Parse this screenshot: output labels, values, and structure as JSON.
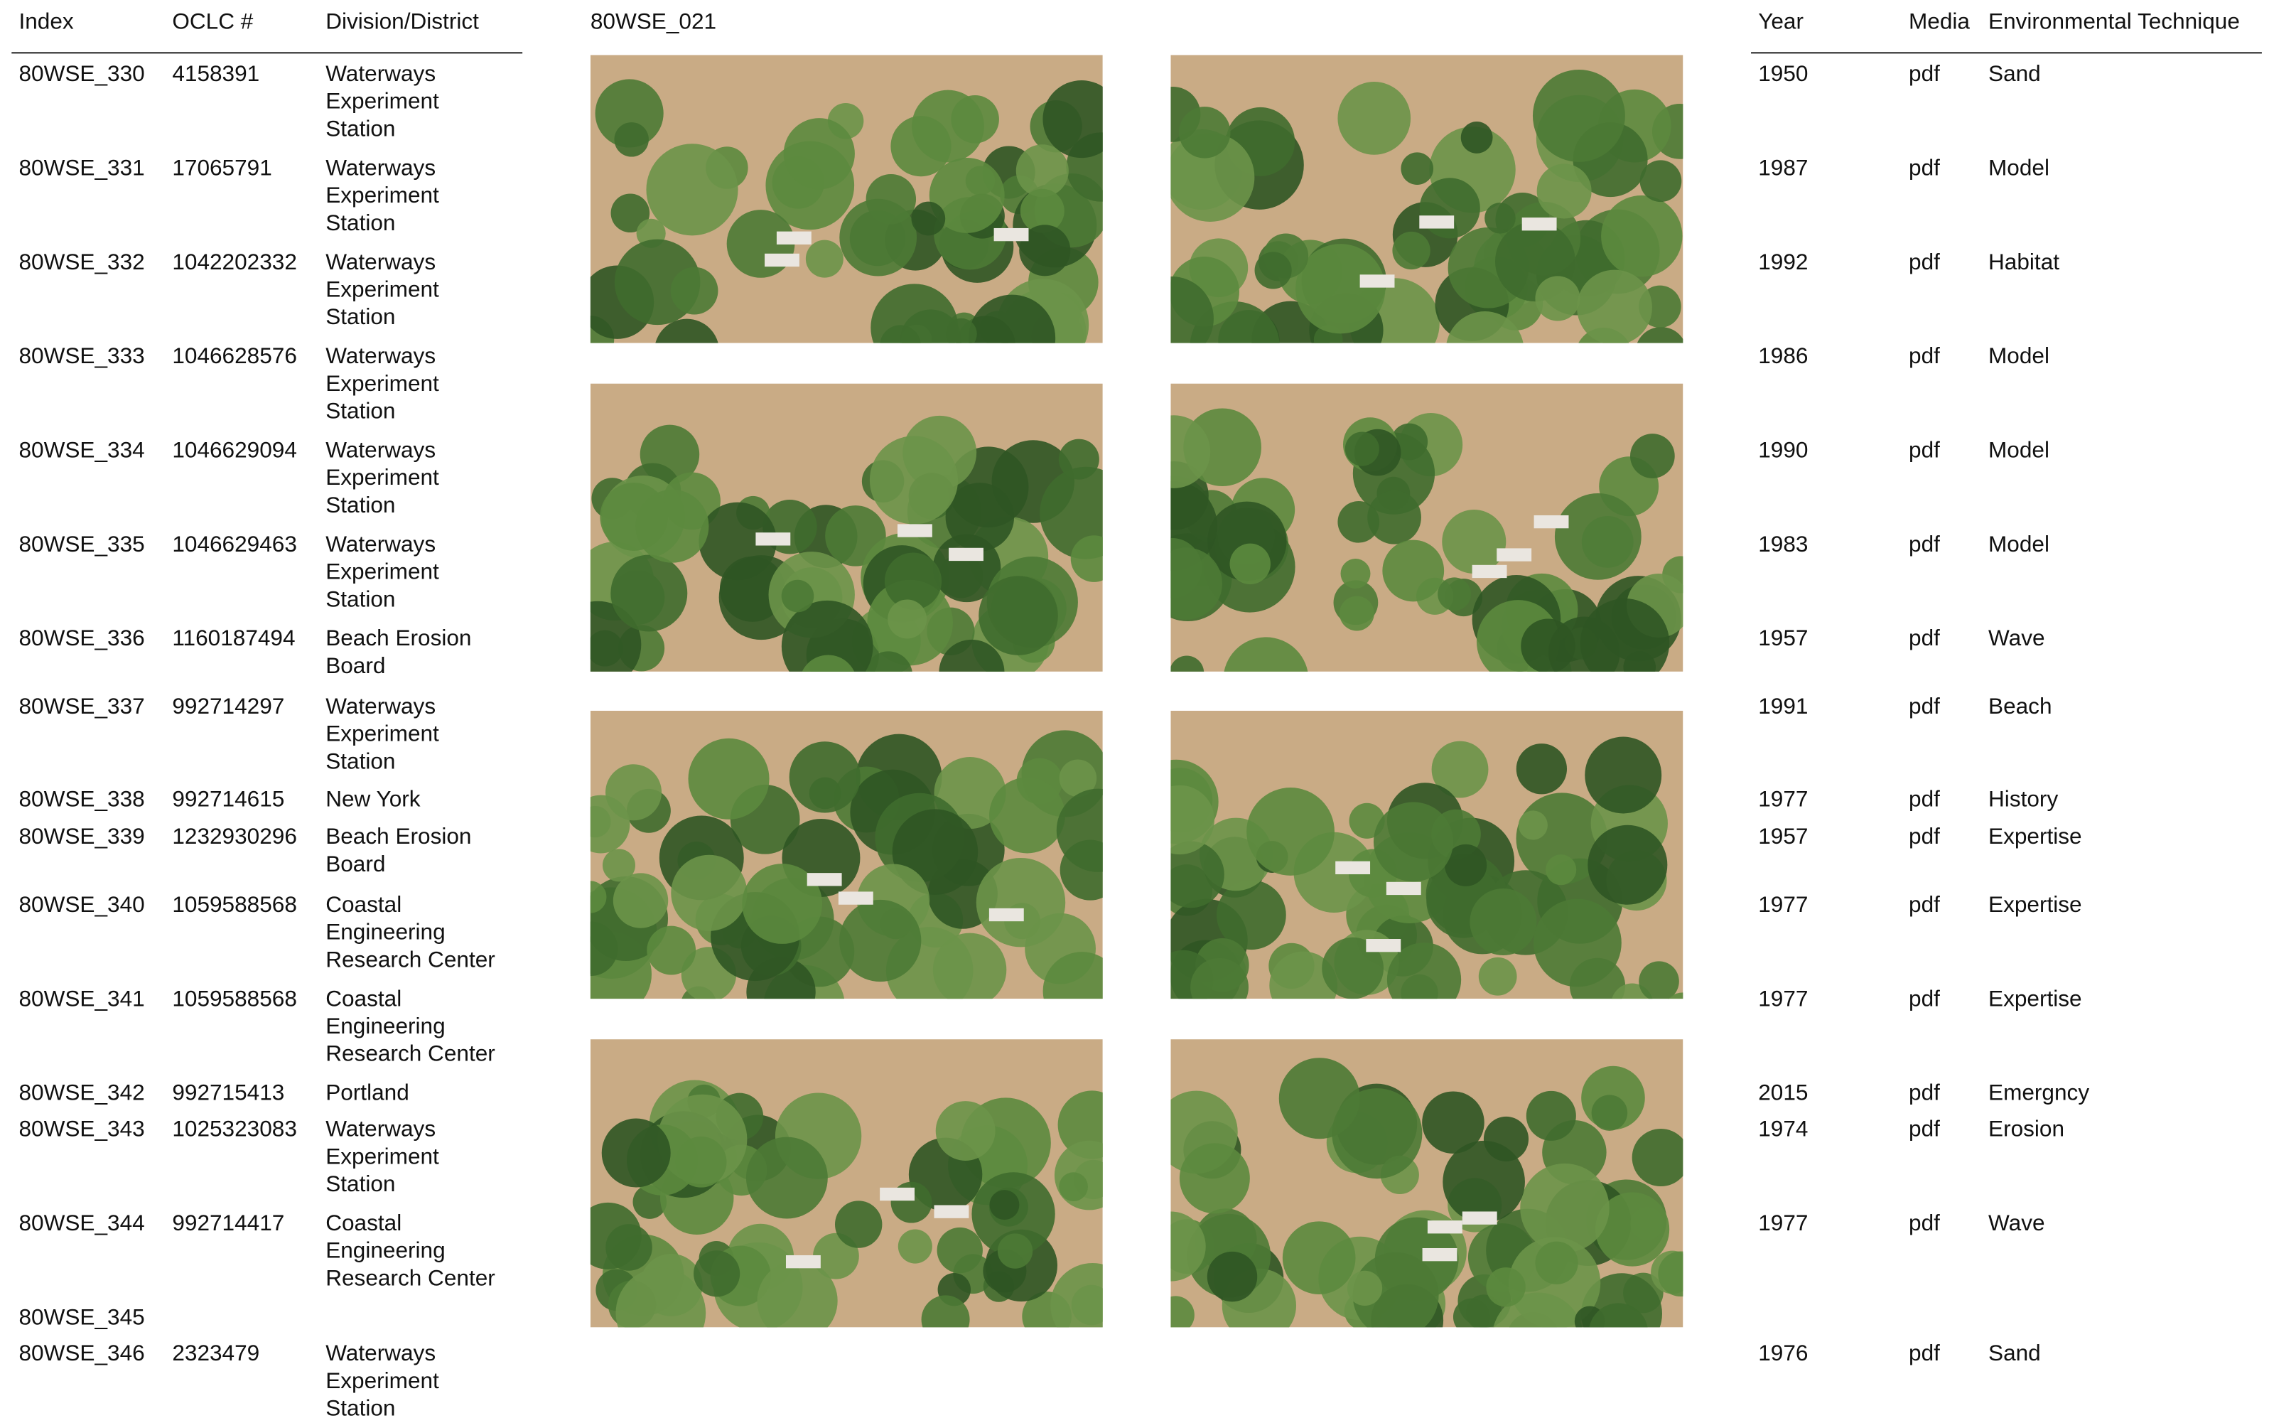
{
  "header": {
    "title": "80WSE_021"
  },
  "table": {
    "left_headers": [
      "Index",
      "OCLC #",
      "Division/District"
    ],
    "right_headers": [
      "Year",
      "Media",
      "Environmental Technique"
    ],
    "rows": [
      {
        "index": "80WSE_330",
        "oclc": "4158391",
        "division": "Waterways Experiment Station",
        "year": "1950",
        "media": "pdf",
        "technique": "Sand"
      },
      {
        "index": "80WSE_331",
        "oclc": "17065791",
        "division": "Waterways Experiment Station",
        "year": "1987",
        "media": "pdf",
        "technique": "Model"
      },
      {
        "index": "80WSE_332",
        "oclc": "1042202332",
        "division": "Waterways Experiment Station",
        "year": "1992",
        "media": "pdf",
        "technique": "Habitat"
      },
      {
        "index": "80WSE_333",
        "oclc": "1046628576",
        "division": "Waterways Experiment Station",
        "year": "1986",
        "media": "pdf",
        "technique": "Model"
      },
      {
        "index": "80WSE_334",
        "oclc": "1046629094",
        "division": "Waterways Experiment Station",
        "year": "1990",
        "media": "pdf",
        "technique": "Model"
      },
      {
        "index": "80WSE_335",
        "oclc": "1046629463",
        "division": "Waterways Experiment Station",
        "year": "1983",
        "media": "pdf",
        "technique": "Model"
      },
      {
        "index": "80WSE_336",
        "oclc": "1160187494",
        "division": "Beach Erosion Board",
        "year": "1957",
        "media": "pdf",
        "technique": "Wave"
      },
      {
        "index": "80WSE_337",
        "oclc": "992714297",
        "division": "Waterways Experiment Station",
        "year": "1991",
        "media": "pdf",
        "technique": "Beach"
      },
      {
        "index": "80WSE_338",
        "oclc": "992714615",
        "division": "New York",
        "year": "1977",
        "media": "pdf",
        "technique": "History"
      },
      {
        "index": "80WSE_339",
        "oclc": "1232930296",
        "division": "Beach Erosion Board",
        "year": "1957",
        "media": "pdf",
        "technique": "Expertise"
      },
      {
        "index": "80WSE_340",
        "oclc": "1059588568",
        "division": "Coastal Engineering Research Center",
        "year": "1977",
        "media": "pdf",
        "technique": "Expertise"
      },
      {
        "index": "80WSE_341",
        "oclc": "1059588568",
        "division": "Coastal Engineering Research Center",
        "year": "1977",
        "media": "pdf",
        "technique": "Expertise"
      },
      {
        "index": "80WSE_342",
        "oclc": "992715413",
        "division": "Portland",
        "year": "2015",
        "media": "pdf",
        "technique": "Emergncy"
      },
      {
        "index": "80WSE_343",
        "oclc": "1025323083",
        "division": "Waterways Experiment Station",
        "year": "1974",
        "media": "pdf",
        "technique": "Erosion"
      },
      {
        "index": "80WSE_344",
        "oclc": "992714417",
        "division": "Coastal Engineering Research Center",
        "year": "1977",
        "media": "pdf",
        "technique": "Wave"
      },
      {
        "index": "80WSE_345"
      },
      {
        "index": "80WSE_346",
        "oclc": "2323479",
        "division": "Waterways Experiment Station",
        "year": "1976",
        "media": "pdf",
        "technique": "Sand"
      }
    ]
  }
}
